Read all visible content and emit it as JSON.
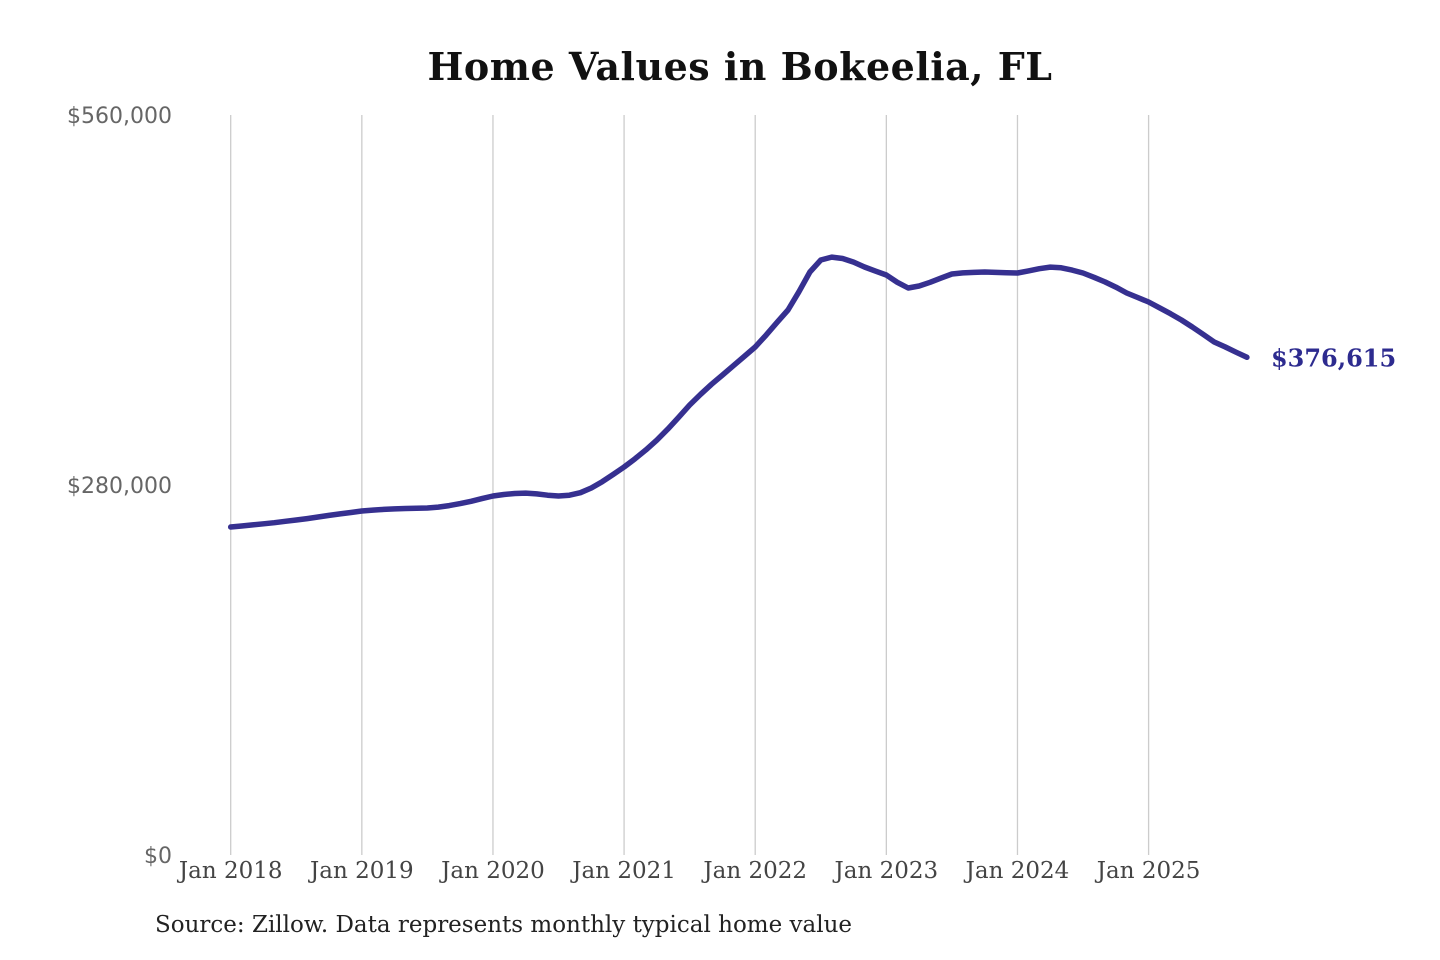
{
  "page": {
    "title": "Home Values in Bokeelia, FL",
    "source_note": "Source: Zillow. Data represents monthly typical home value",
    "current_value_label": "$376,615"
  },
  "colors": {
    "background": "#ffffff",
    "line": "#363090",
    "end_label": "#2d2b8f",
    "gridline": "#cccccc",
    "title_text": "#111111",
    "y_tick_text": "#666666",
    "x_tick_text": "#444444",
    "source_text": "#222222"
  },
  "chart_data": {
    "type": "line",
    "title": "Home Values in Bokeelia, FL",
    "series_name": "Typical home value (monthly)",
    "x": [
      "Jan 2018",
      "Feb 2018",
      "Mar 2018",
      "Apr 2018",
      "May 2018",
      "Jun 2018",
      "Jul 2018",
      "Aug 2018",
      "Sep 2018",
      "Oct 2018",
      "Nov 2018",
      "Dec 2018",
      "Jan 2019",
      "Feb 2019",
      "Mar 2019",
      "Apr 2019",
      "May 2019",
      "Jun 2019",
      "Jul 2019",
      "Aug 2019",
      "Sep 2019",
      "Oct 2019",
      "Nov 2019",
      "Dec 2019",
      "Jan 2020",
      "Feb 2020",
      "Mar 2020",
      "Apr 2020",
      "May 2020",
      "Jun 2020",
      "Jul 2020",
      "Aug 2020",
      "Sep 2020",
      "Oct 2020",
      "Nov 2020",
      "Dec 2020",
      "Jan 2021",
      "Feb 2021",
      "Mar 2021",
      "Apr 2021",
      "May 2021",
      "Jun 2021",
      "Jul 2021",
      "Aug 2021",
      "Sep 2021",
      "Oct 2021",
      "Nov 2021",
      "Dec 2021",
      "Jan 2022",
      "Feb 2022",
      "Mar 2022",
      "Apr 2022",
      "May 2022",
      "Jun 2022",
      "Jul 2022",
      "Aug 2022",
      "Sep 2022",
      "Oct 2022",
      "Nov 2022",
      "Dec 2022",
      "Jan 2023",
      "Feb 2023",
      "Mar 2023",
      "Apr 2023",
      "May 2023",
      "Jun 2023",
      "Jul 2023",
      "Aug 2023",
      "Sep 2023",
      "Oct 2023",
      "Nov 2023",
      "Dec 2023",
      "Jan 2024",
      "Feb 2024",
      "Mar 2024",
      "Apr 2024",
      "May 2024",
      "Jun 2024",
      "Jul 2024",
      "Aug 2024",
      "Sep 2024",
      "Oct 2024",
      "Nov 2024",
      "Dec 2024",
      "Jan 2025",
      "Feb 2025",
      "Mar 2025",
      "Apr 2025",
      "May 2025",
      "Jun 2025",
      "Jul 2025",
      "Aug 2025",
      "Sep 2025",
      "Oct 2025"
    ],
    "values": [
      248200,
      249000,
      249800,
      250600,
      251500,
      252500,
      253500,
      254600,
      255800,
      257000,
      258100,
      259200,
      260300,
      261000,
      261500,
      261900,
      262200,
      262400,
      262600,
      263300,
      264400,
      265900,
      267700,
      269700,
      271700,
      272800,
      273600,
      273900,
      273300,
      272300,
      271700,
      272300,
      274200,
      277700,
      282500,
      288000,
      293600,
      299800,
      306600,
      314000,
      322300,
      331200,
      340500,
      348600,
      356200,
      363200,
      370300,
      377300,
      384400,
      393400,
      403100,
      412400,
      426200,
      441200,
      450300,
      452500,
      451400,
      448700,
      445000,
      441900,
      438900,
      433400,
      429100,
      430600,
      433400,
      436600,
      439700,
      440500,
      440900,
      441200,
      440900,
      440600,
      440400,
      442000,
      443700,
      444900,
      444400,
      442600,
      440400,
      437200,
      433700,
      429800,
      425300,
      421900,
      418500,
      414100,
      409600,
      404900,
      399600,
      394000,
      388200,
      384500,
      380500,
      376615
    ],
    "x_tick_labels": [
      "Jan 2018",
      "Jan 2019",
      "Jan 2020",
      "Jan 2021",
      "Jan 2022",
      "Jan 2023",
      "Jan 2024",
      "Jan 2025"
    ],
    "x_tick_month_indices": [
      0,
      12,
      24,
      36,
      48,
      60,
      72,
      84
    ],
    "y_ticks": [
      {
        "value": 0,
        "label": "$0"
      },
      {
        "value": 280000,
        "label": "$280,000"
      },
      {
        "value": 560000,
        "label": "$560,000"
      }
    ],
    "ylim": [
      0,
      560000
    ],
    "grid": "vertical-only",
    "legend": "none",
    "final_point": {
      "month": "Oct 2025",
      "value": 376615,
      "label": "$376,615"
    }
  }
}
